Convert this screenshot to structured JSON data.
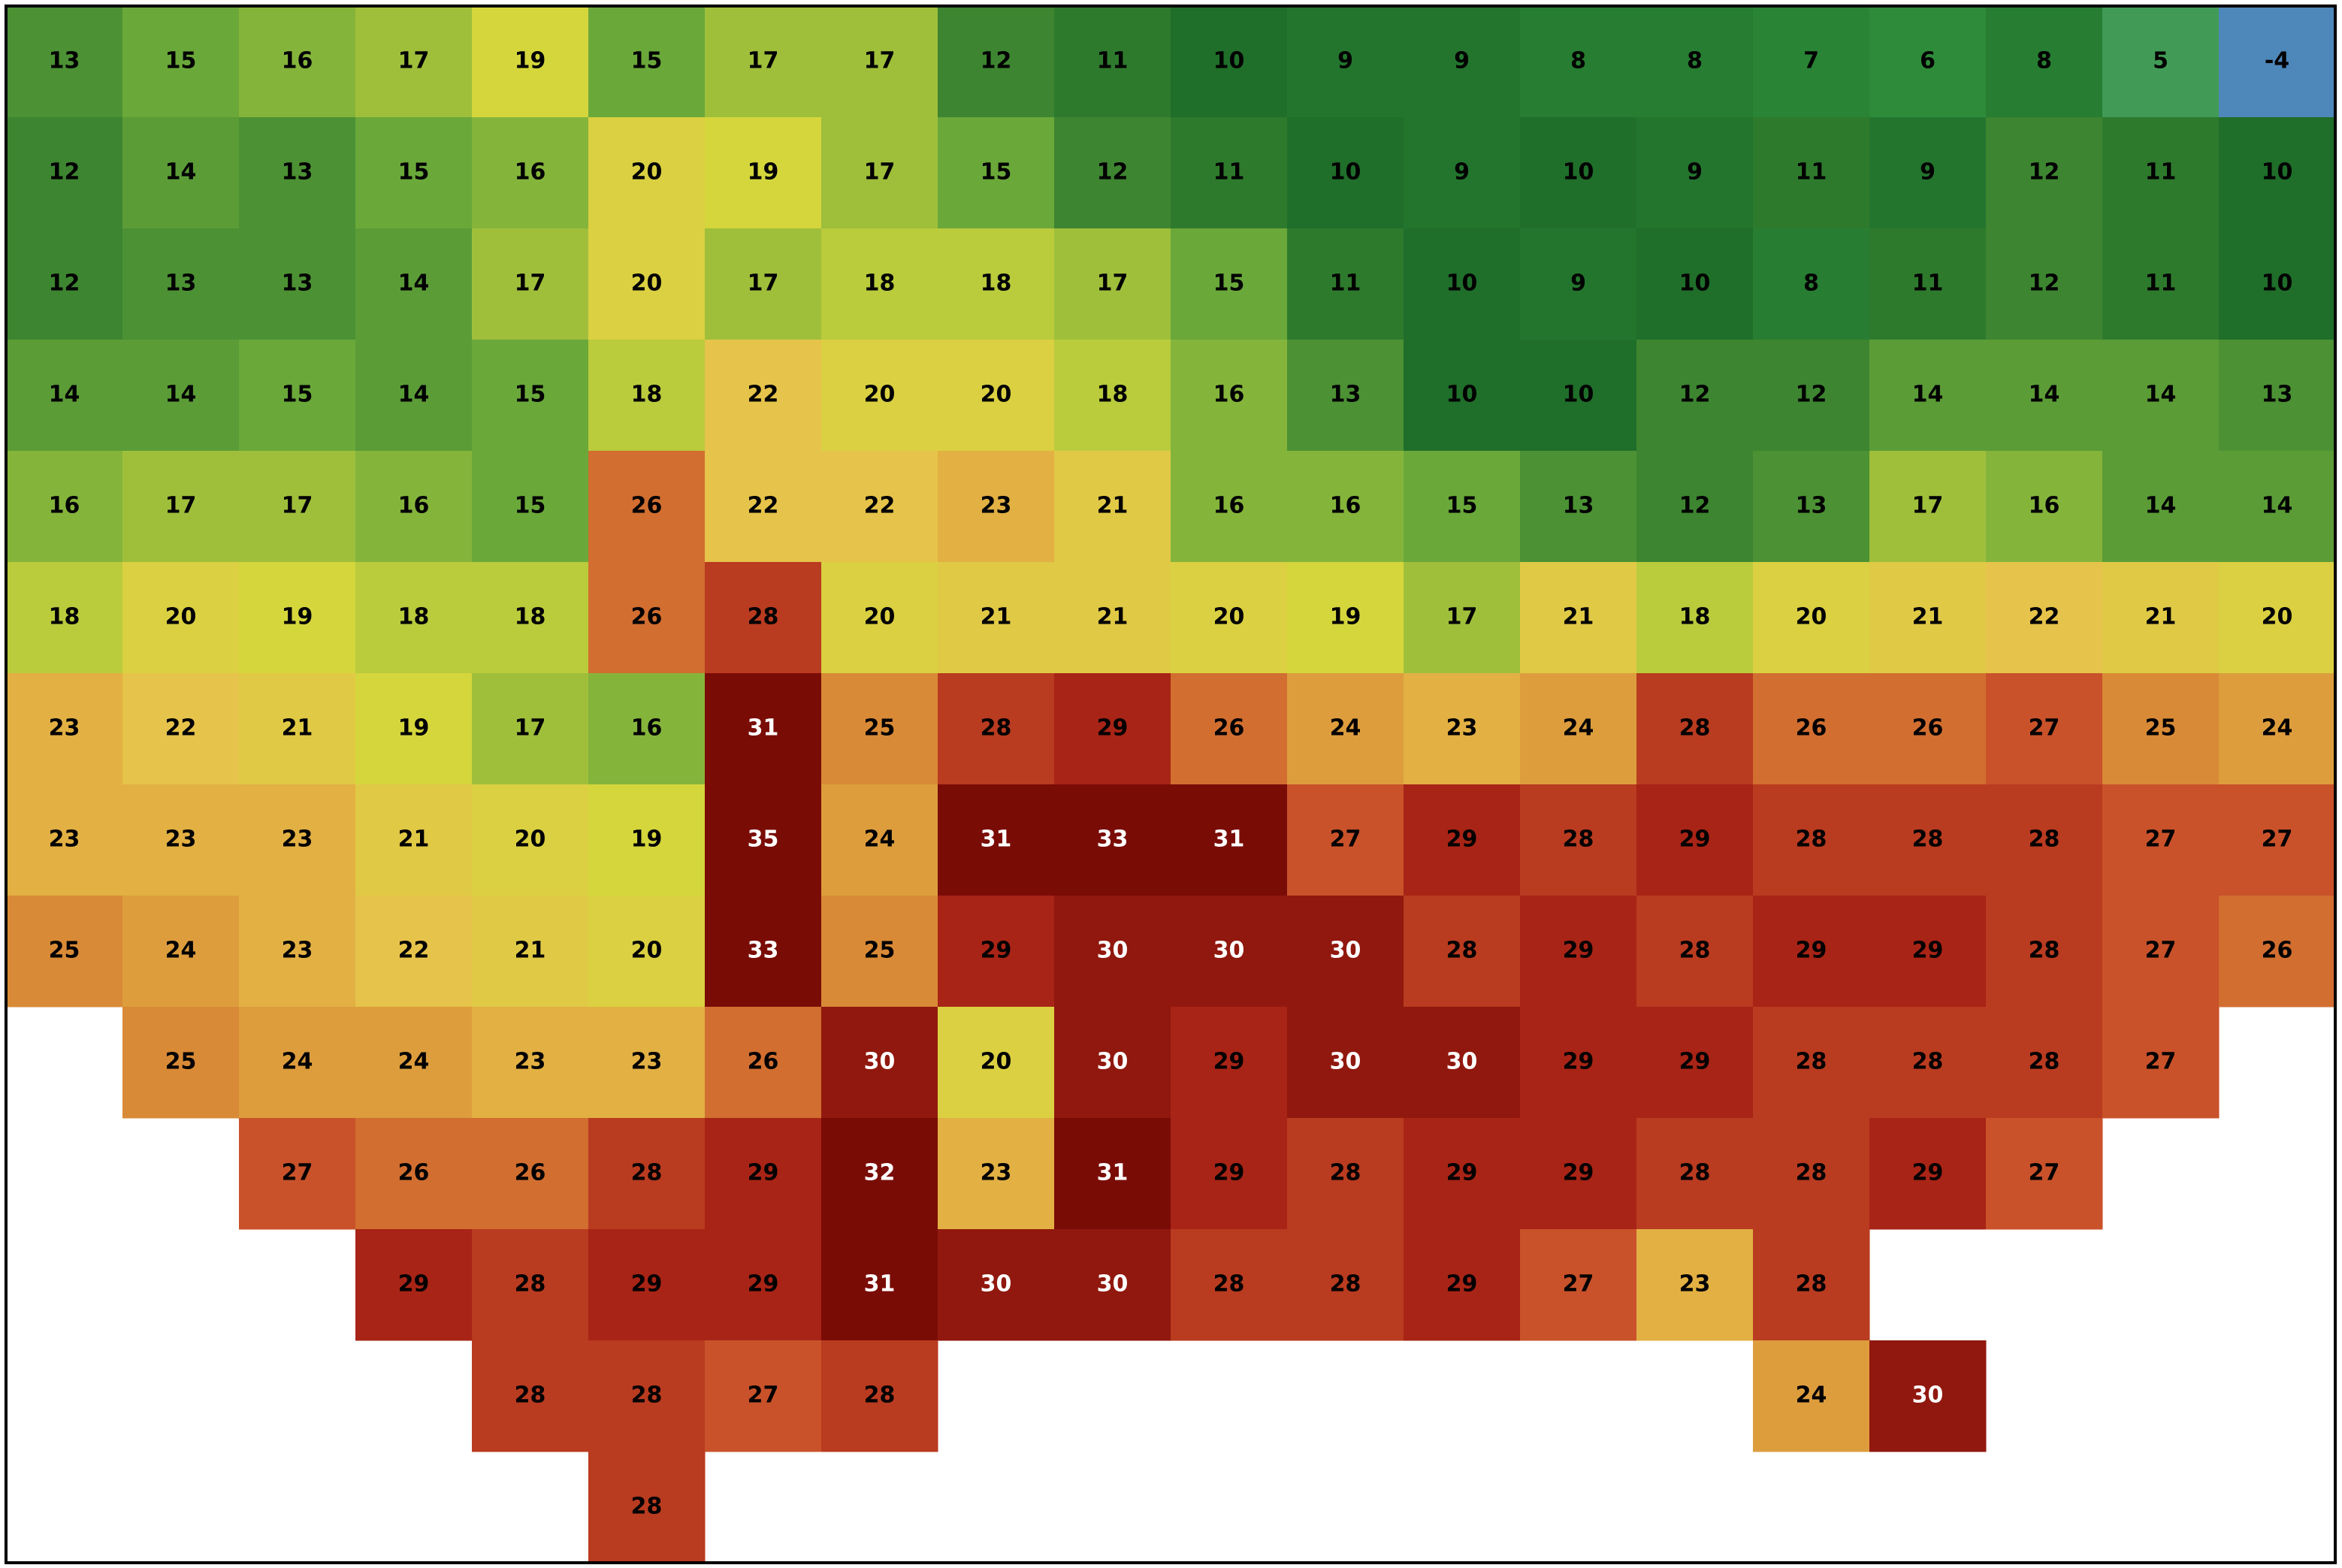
{
  "map": {
    "field": "temperature",
    "color_scale": [
      [
        -5,
        "#3a6fb0"
      ],
      [
        0,
        "#9fe8e4"
      ],
      [
        6,
        "#2e8b3a"
      ],
      [
        10,
        "#1f6e2a"
      ],
      [
        15,
        "#6aa83a"
      ],
      [
        19,
        "#d4d63c"
      ],
      [
        22,
        "#e6c34a"
      ],
      [
        25,
        "#d98a36"
      ],
      [
        27,
        "#c9522a"
      ],
      [
        29,
        "#a82416"
      ],
      [
        31,
        "#7a0c06"
      ]
    ],
    "white_label_from": 30,
    "rows": [
      [
        13,
        15,
        16,
        17,
        19,
        15,
        17,
        17,
        12,
        11,
        10,
        9,
        9,
        8,
        8,
        7,
        6,
        8,
        5,
        -4
      ],
      [
        12,
        14,
        13,
        15,
        16,
        20,
        19,
        17,
        15,
        12,
        11,
        10,
        9,
        10,
        9,
        11,
        9,
        12,
        11,
        10
      ],
      [
        12,
        13,
        13,
        14,
        17,
        20,
        17,
        18,
        18,
        17,
        15,
        11,
        10,
        9,
        10,
        8,
        11,
        12,
        11,
        10
      ],
      [
        14,
        14,
        15,
        14,
        15,
        18,
        22,
        20,
        20,
        18,
        16,
        13,
        10,
        10,
        12,
        12,
        14,
        14,
        14,
        13
      ],
      [
        16,
        17,
        17,
        16,
        15,
        26,
        22,
        22,
        23,
        21,
        16,
        16,
        15,
        13,
        12,
        13,
        17,
        16,
        14,
        14
      ],
      [
        18,
        20,
        19,
        18,
        18,
        26,
        28,
        20,
        21,
        21,
        20,
        19,
        17,
        21,
        18,
        20,
        21,
        22,
        21,
        20
      ],
      [
        23,
        22,
        21,
        19,
        17,
        16,
        31,
        25,
        28,
        29,
        26,
        24,
        23,
        24,
        28,
        26,
        26,
        27,
        25,
        24
      ],
      [
        23,
        23,
        23,
        21,
        20,
        19,
        35,
        24,
        31,
        33,
        31,
        27,
        29,
        28,
        29,
        28,
        28,
        28,
        27,
        27
      ],
      [
        25,
        24,
        23,
        22,
        21,
        20,
        33,
        25,
        29,
        30,
        30,
        30,
        28,
        29,
        28,
        29,
        29,
        28,
        27,
        26
      ],
      [
        null,
        25,
        24,
        24,
        23,
        23,
        26,
        30,
        20,
        30,
        29,
        30,
        30,
        29,
        29,
        28,
        28,
        28,
        27,
        null
      ],
      [
        null,
        null,
        27,
        26,
        26,
        28,
        29,
        32,
        23,
        31,
        29,
        28,
        29,
        29,
        28,
        28,
        29,
        27,
        null,
        null
      ],
      [
        null,
        null,
        null,
        29,
        28,
        29,
        29,
        31,
        30,
        30,
        28,
        28,
        29,
        27,
        23,
        28,
        null,
        null,
        null,
        null
      ],
      [
        null,
        null,
        null,
        null,
        28,
        28,
        27,
        28,
        null,
        null,
        null,
        null,
        null,
        null,
        null,
        24,
        30,
        null,
        null,
        null
      ],
      [
        null,
        null,
        null,
        null,
        null,
        28,
        null,
        null,
        null,
        null,
        null,
        null,
        null,
        null,
        null,
        null,
        null,
        null,
        null,
        null
      ]
    ]
  }
}
